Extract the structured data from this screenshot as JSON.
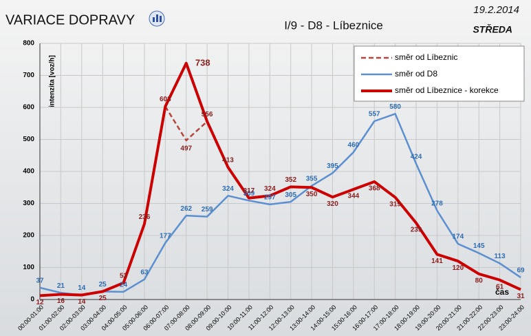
{
  "chart_data": {
    "type": "line",
    "title": "VARIACE DOPRAVY",
    "subtitle": "I/9 - D8 - Líbeznice",
    "date": "19.2.2014",
    "weekday": "STŘEDA",
    "y_label": "intenzita [voz/h]",
    "x_label": "čas",
    "categories": [
      "00:00-01:00",
      "01:00-02:00",
      "02:00-03:00",
      "03:00-04:00",
      "04:00-05:00",
      "05:00-06:00",
      "06:00-07:00",
      "07:00-08:00",
      "08:00-09:00",
      "09:00-10:00",
      "10:00-11:00",
      "11:00-12:00",
      "12:00-13:00",
      "13:00-14:00",
      "14:00-15:00",
      "15:00-16:00",
      "16:00-17:00",
      "17:00-18:00",
      "18:00-19:00",
      "19:00-20:00",
      "20:00-21:00",
      "21:00-22:00",
      "22:00-23:00",
      "23:00-24:00"
    ],
    "series": [
      {
        "name": "směr od Líbeznic",
        "color": "#b5463e",
        "dashed": true,
        "values": [
          null,
          null,
          null,
          null,
          null,
          null,
          603,
          497,
          556,
          null,
          null,
          null,
          null,
          null,
          null,
          null,
          null,
          null,
          null,
          null,
          null,
          null,
          null,
          null
        ]
      },
      {
        "name": "směr od D8",
        "color": "#5b8fcf",
        "values": [
          37,
          21,
          14,
          25,
          24,
          63,
          177,
          262,
          259,
          324,
          309,
          297,
          305,
          355,
          395,
          460,
          557,
          580,
          424,
          278,
          174,
          145,
          113,
          69
        ]
      },
      {
        "name": "směr od Líbeznice - korekce",
        "color": "#cc0000",
        "values": [
          12,
          16,
          14,
          25,
          52,
          236,
          603,
          738,
          556,
          413,
          317,
          324,
          352,
          350,
          320,
          344,
          368,
          319,
          239,
          141,
          120,
          80,
          61,
          31
        ]
      }
    ],
    "ylim": [
      0,
      800
    ],
    "yticks": [
      0,
      100,
      200,
      300,
      400,
      500,
      600,
      700,
      800
    ],
    "grid": true,
    "legend": "upper right"
  }
}
